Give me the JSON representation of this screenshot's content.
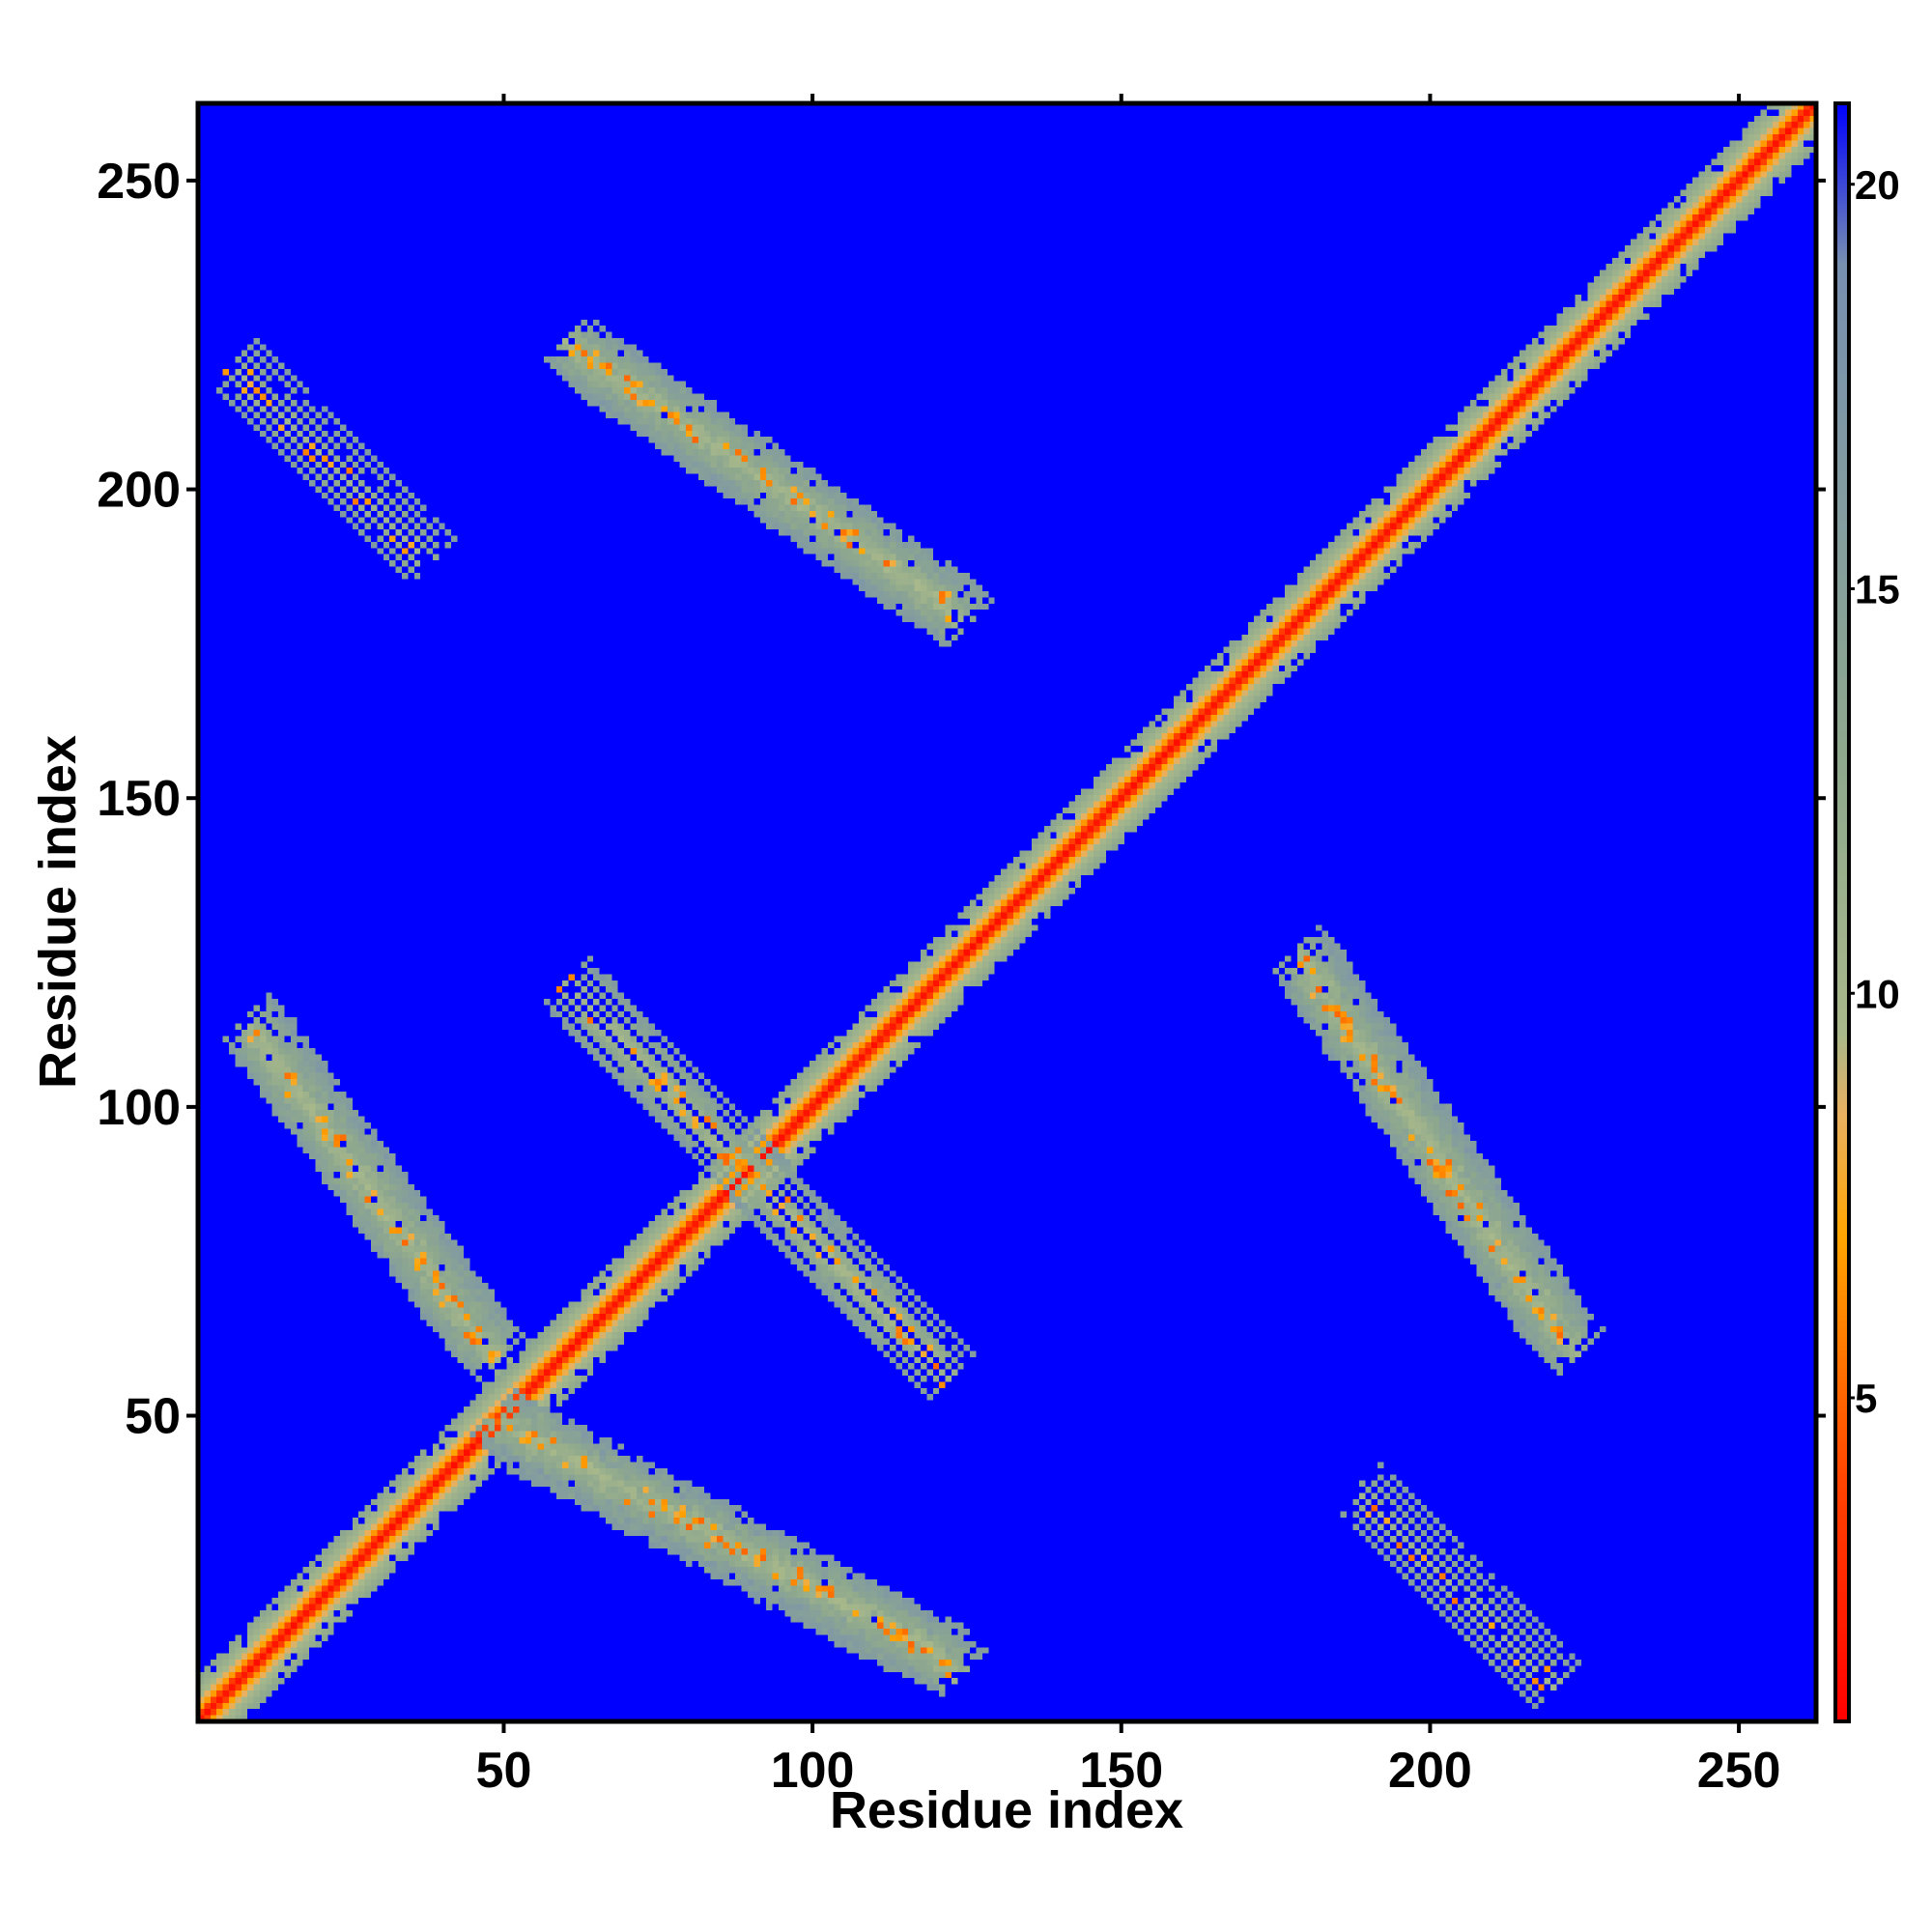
{
  "chart_data": {
    "type": "heatmap",
    "title": "",
    "xlabel": "Residue index",
    "ylabel": "Residue index",
    "n_residues": 262,
    "xlim": [
      1,
      262
    ],
    "ylim": [
      1,
      262
    ],
    "x_ticks": [
      50,
      100,
      150,
      200,
      250
    ],
    "y_ticks": [
      50,
      100,
      150,
      200,
      250
    ],
    "colorbar": {
      "range": [
        1,
        21
      ],
      "ticks": [
        5,
        10,
        15,
        20
      ],
      "stops": [
        {
          "value": 1,
          "color": "#ff0000"
        },
        {
          "value": 4,
          "color": "#ff4500"
        },
        {
          "value": 7,
          "color": "#ffa500"
        },
        {
          "value": 8.5,
          "color": "#e8b060"
        },
        {
          "value": 9.5,
          "color": "#a8b88a"
        },
        {
          "value": 13,
          "color": "#8ea88e"
        },
        {
          "value": 19,
          "color": "#7890b0"
        },
        {
          "value": 21,
          "color": "#0000ff"
        }
      ],
      "background_color": "#0000ff"
    },
    "diagonal_band": {
      "start": 1,
      "end": 262,
      "contact_halfwidth": 7
    },
    "off_diagonal_contact_regions": [
      {
        "x_range": [
          8,
          36
        ],
        "y_range": [
          190,
          218
        ],
        "orientation": "anti-parallel",
        "density": "sparse"
      },
      {
        "x_range": [
          62,
          123
        ],
        "y_range": [
          180,
          222
        ],
        "orientation": "anti-parallel",
        "density": "medium"
      },
      {
        "x_range": [
          10,
          48
        ],
        "y_range": [
          60,
          112
        ],
        "orientation": "anti-parallel",
        "density": "medium"
      },
      {
        "x_range": [
          50,
          122
        ],
        "y_range": [
          10,
          48
        ],
        "orientation": "anti-parallel",
        "density": "medium"
      },
      {
        "x_range": [
          62,
          120
        ],
        "y_range": [
          58,
          118
        ],
        "orientation": "anti-parallel",
        "density": "medium"
      },
      {
        "x_range": [
          180,
          222
        ],
        "y_range": [
          62,
          123
        ],
        "orientation": "anti-parallel",
        "density": "medium"
      },
      {
        "x_range": [
          190,
          218
        ],
        "y_range": [
          8,
          36
        ],
        "orientation": "anti-parallel",
        "density": "sparse"
      }
    ]
  }
}
